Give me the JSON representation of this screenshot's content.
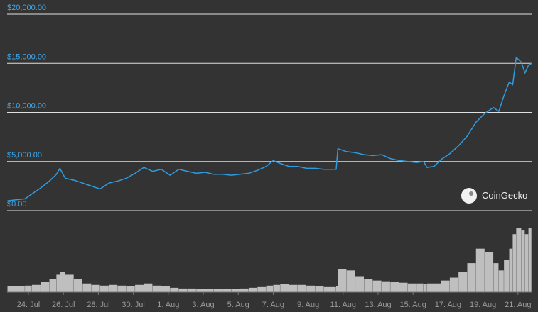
{
  "chart_data": {
    "type": "line",
    "x": [
      22.8,
      23.3,
      23.8,
      24.2,
      24.7,
      25.2,
      25.6,
      25.8,
      26.1,
      26.6,
      27.1,
      27.6,
      28.1,
      28.6,
      29.1,
      29.6,
      30.1,
      30.6,
      31.1,
      31.6,
      32.1,
      32.6,
      33.1,
      33.6,
      34.1,
      34.6,
      35.1,
      35.6,
      36.1,
      36.6,
      37.1,
      37.6,
      38,
      38.4,
      38.9,
      39.4,
      39.9,
      40.4,
      40.9,
      41.6,
      41.7,
      42.2,
      42.7,
      43.2,
      43.7,
      44.2,
      44.7,
      45.2,
      45.7,
      46.2,
      46.6,
      46.8,
      47.2,
      47.6,
      48.1,
      48.6,
      49.1,
      49.6,
      50.1,
      50.6,
      50.9,
      51.2,
      51.5,
      51.7,
      51.9,
      52.2,
      52.4,
      52.6,
      52.78
    ],
    "series": [
      {
        "color": "#2f9be0",
        "values": [
          1000,
          1100,
          1200,
          1700,
          2300,
          3000,
          3700,
          4300,
          3300,
          3100,
          2800,
          2500,
          2200,
          2800,
          3000,
          3300,
          3800,
          4400,
          4000,
          4200,
          3600,
          4200,
          4000,
          3800,
          3900,
          3700,
          3700,
          3600,
          3700,
          3800,
          4100,
          4500,
          5100,
          4800,
          4500,
          4500,
          4300,
          4300,
          4200,
          4200,
          6300,
          6000,
          5900,
          5700,
          5600,
          5700,
          5300,
          5100,
          5000,
          4900,
          5000,
          4400,
          4500,
          5200,
          5800,
          6600,
          7600,
          9000,
          9900,
          10500,
          10100,
          11700,
          13100,
          12800,
          15600,
          15100,
          14000,
          14800,
          15000
        ]
      }
    ],
    "volume": {
      "color": "#d8d8d8",
      "values": [
        8,
        8,
        9,
        10,
        14,
        18,
        24,
        28,
        24,
        18,
        12,
        10,
        9,
        10,
        9,
        8,
        10,
        12,
        9,
        8,
        6,
        5,
        5,
        4,
        4,
        4,
        4,
        4,
        5,
        6,
        7,
        9,
        10,
        11,
        10,
        10,
        9,
        8,
        7,
        8,
        32,
        30,
        22,
        18,
        16,
        15,
        14,
        13,
        12,
        12,
        11,
        12,
        12,
        16,
        20,
        28,
        40,
        60,
        55,
        40,
        30,
        45,
        60,
        80,
        88,
        85,
        80,
        88,
        90
      ]
    },
    "xlim": [
      22.78,
      52.78
    ],
    "xticks": [
      {
        "value": 24,
        "label": "24. Jul"
      },
      {
        "value": 26,
        "label": "26. Jul"
      },
      {
        "value": 28,
        "label": "28. Jul"
      },
      {
        "value": 30,
        "label": "30. Jul"
      },
      {
        "value": 32,
        "label": "1. Aug"
      },
      {
        "value": 34,
        "label": "3. Aug"
      },
      {
        "value": 36,
        "label": "5. Aug"
      },
      {
        "value": 38,
        "label": "7. Aug"
      },
      {
        "value": 40,
        "label": "9. Aug"
      },
      {
        "value": 42,
        "label": "11. Aug"
      },
      {
        "value": 44,
        "label": "13. Aug"
      },
      {
        "value": 46,
        "label": "15. Aug"
      },
      {
        "value": 48,
        "label": "17. Aug"
      },
      {
        "value": 50,
        "label": "19. Aug"
      },
      {
        "value": 52,
        "label": "21. Aug"
      }
    ],
    "ylim": [
      0,
      20000
    ],
    "yticks": [
      {
        "value": 0,
        "label": "$0.00"
      },
      {
        "value": 5000,
        "label": "$5,000.00"
      },
      {
        "value": 10000,
        "label": "$10,000.00"
      },
      {
        "value": 15000,
        "label": "$15,000.00"
      },
      {
        "value": 20000,
        "label": "$20,000.00"
      }
    ],
    "grid": true,
    "watermark": "CoinGecko"
  }
}
